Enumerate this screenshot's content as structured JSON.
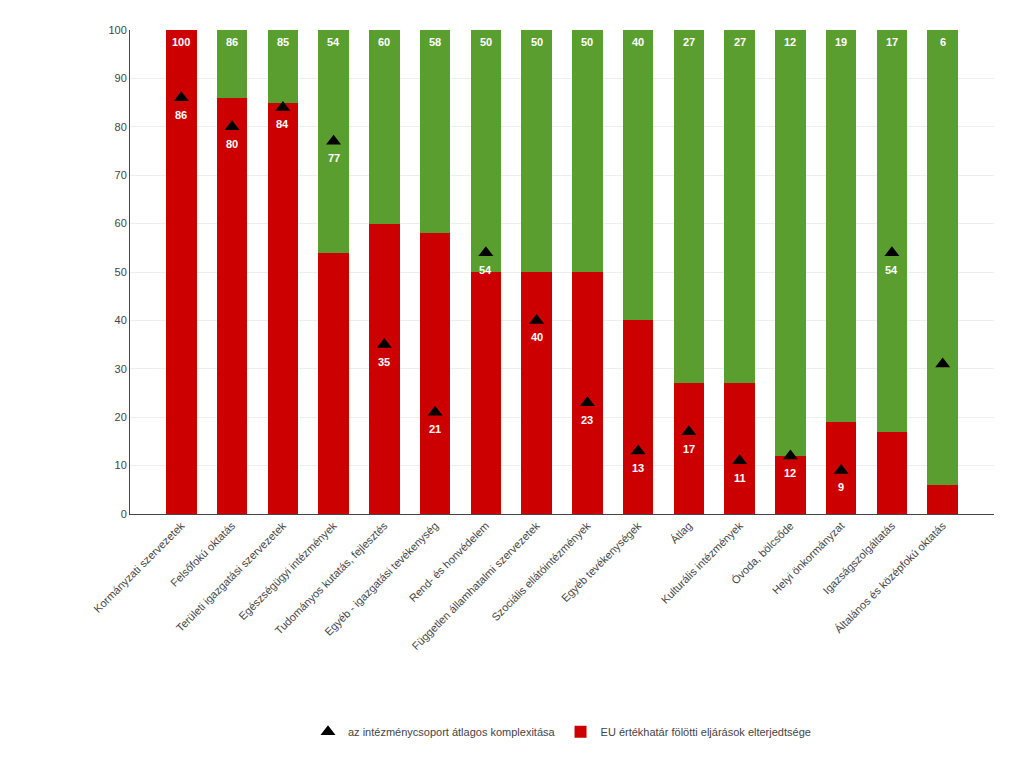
{
  "chart_data": {
    "type": "bar",
    "stacked": true,
    "categories": [
      "Kormányzati szervezetek",
      "Felsőfokú oktatás",
      "Területi igazgatási szervezetek",
      "Egészségügyi intézmények",
      "Tudományos kutatás, fejlesztés",
      "Egyéb - igazgatási tevékenység",
      "Rend- és honvédelem",
      "Független államhatalmi szervezetek",
      "Szociális ellátóintézmények",
      "Egyéb tevékenységek",
      "Átlag",
      "Kulturális intézmények",
      "Óvoda, bölcsőde",
      "Helyi önkormányzat",
      "Igazságszolgáltatás",
      "Általános és középfokú oktatás"
    ],
    "series": [
      {
        "name": "EU értékhatár fölötti eljárások elterjedtsége",
        "type": "bar",
        "color": "#CC0000",
        "values": [
          100,
          86,
          85,
          54,
          60,
          58,
          50,
          50,
          50,
          40,
          27,
          27,
          12,
          19,
          17,
          6
        ],
        "data_labels": true
      },
      {
        "type": "bar",
        "color": "#5A9E30",
        "values": [
          0,
          14,
          15,
          46,
          40,
          42,
          50,
          50,
          50,
          60,
          73,
          73,
          88,
          81,
          83,
          94
        ]
      },
      {
        "name": "az intézménycsoport átlagos komplexitása",
        "type": "scatter",
        "marker": "triangle-up",
        "color": "#000000",
        "values": [
          86,
          80,
          84,
          77,
          35,
          21,
          54,
          40,
          23,
          13,
          17,
          11,
          12,
          9,
          54,
          31
        ],
        "data_labels": true,
        "value_labels": [
          "86",
          "80",
          "84",
          "77",
          "35",
          "21",
          "54",
          "40",
          "23",
          "13",
          "17",
          "11",
          "12",
          "9",
          "54",
          null
        ]
      }
    ],
    "ylim": [
      0,
      100
    ],
    "yticks": [
      0,
      10,
      20,
      30,
      40,
      50,
      60,
      70,
      80,
      90,
      100
    ],
    "grid": true,
    "legend": "bottom"
  }
}
